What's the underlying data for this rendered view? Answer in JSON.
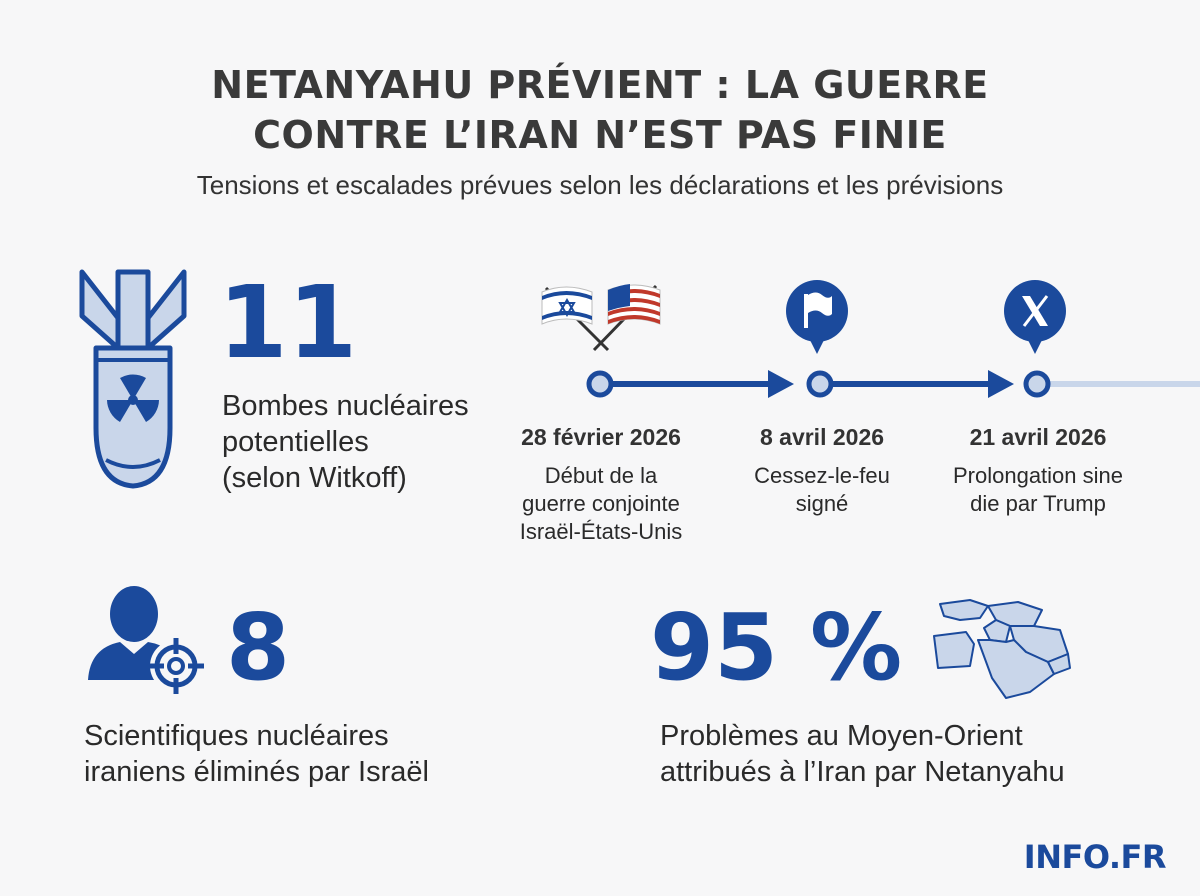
{
  "header": {
    "title_line1": "NETANYAHU PRÉVIENT : LA GUERRE",
    "title_line2": "CONTRE L’IRAN N’EST PAS FINIE",
    "subtitle": "Tensions et escalades prévues selon les déclarations et les prévisions"
  },
  "colors": {
    "accent": "#1b4a9c",
    "light_accent": "#c9d6ea",
    "background": "#f7f7f8"
  },
  "stats": {
    "bombs": {
      "value": "11",
      "line1": "Bombes nucléaires",
      "line2": "potentielles",
      "line3": "(selon Witkoff)",
      "icon": "bomb-radiation-icon"
    },
    "scientists": {
      "value": "8",
      "line1": "Scientifiques nucléaires",
      "line2": "iraniens éliminés par Israël",
      "icon": "person-target-icon"
    },
    "problems": {
      "value": "95 %",
      "line1": "Problèmes au Moyen-Orient",
      "line2": "attribués à l’Iran par Netanyahu",
      "icon": "middle-east-map-icon"
    }
  },
  "timeline": [
    {
      "date": "28 février 2026",
      "desc1": "Début de la",
      "desc2": "guerre conjointe",
      "desc3": "Israël-États-Unis",
      "icon": "israel-usa-flags-icon"
    },
    {
      "date": "8 avril 2026",
      "desc1": "Cessez-le-feu",
      "desc2": "signé",
      "desc3": "",
      "icon": "white-flag-icon"
    },
    {
      "date": "21 avril 2026",
      "desc1": "Prolongation sine",
      "desc2": "die par Trump",
      "desc3": "",
      "icon": "x-logo-icon"
    }
  ],
  "brand": "INFO.FR"
}
